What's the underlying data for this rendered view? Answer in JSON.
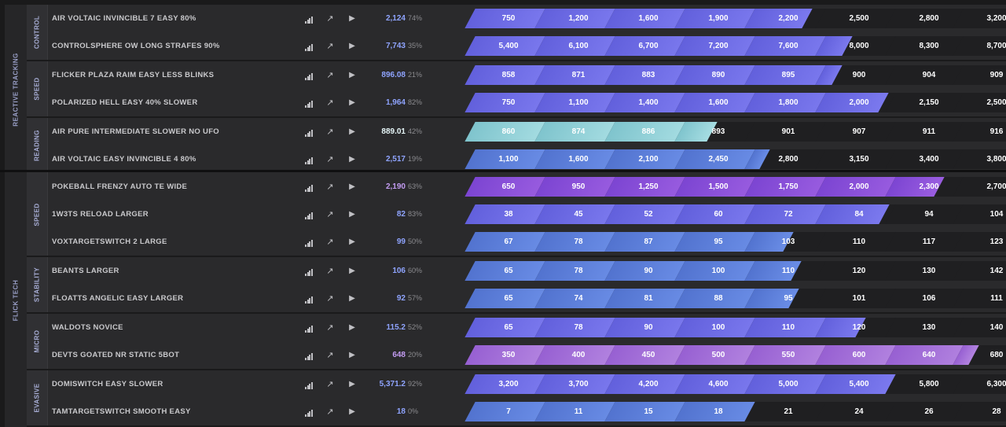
{
  "colors": {
    "blue": "#5b7fd9",
    "violet": "#6d6ce6",
    "purple": "#8a50d8",
    "lavender": "#a371d8",
    "cyan": "#8ecfd6"
  },
  "icons": [
    "bar-chart-icon",
    "trend-icon",
    "play-icon"
  ],
  "sections": [
    {
      "label": "REACTIVE TRACKING",
      "groups": [
        {
          "label": "CONTROL",
          "rows": [
            {
              "scenario": "AIR VOLTAIC INVINCIBLE 7 EASY 80%",
              "score": "2,124",
              "pct": "74%",
              "color": "violet",
              "progress": 4.74,
              "ranks": [
                "750",
                "1,200",
                "1,600",
                "1,900",
                "2,200",
                "2,500",
                "2,800",
                "3,200"
              ]
            },
            {
              "scenario": "CONTROLSPHERE OW LONG STRAFES 90%",
              "score": "7,743",
              "pct": "35%",
              "color": "violet",
              "progress": 5.35,
              "ranks": [
                "5,400",
                "6,100",
                "6,700",
                "7,200",
                "7,600",
                "8,000",
                "8,300",
                "8,700"
              ]
            }
          ]
        },
        {
          "label": "SPEED",
          "rows": [
            {
              "scenario": "FLICKER PLAZA RAIM EASY LESS BLINKS",
              "score": "896.08",
              "pct": "21%",
              "color": "violet",
              "progress": 5.21,
              "ranks": [
                "858",
                "871",
                "883",
                "890",
                "895",
                "900",
                "904",
                "909"
              ]
            },
            {
              "scenario": "POLARIZED HELL EASY 40% SLOWER",
              "score": "1,964",
              "pct": "82%",
              "color": "violet",
              "progress": 5.82,
              "ranks": [
                "750",
                "1,100",
                "1,400",
                "1,600",
                "1,800",
                "2,000",
                "2,150",
                "2,500"
              ]
            }
          ]
        },
        {
          "label": "READING",
          "rows": [
            {
              "scenario": "AIR PURE INTERMEDIATE SLOWER NO UFO",
              "score": "889.01",
              "pct": "42%",
              "color": "cyan",
              "progress": 3.42,
              "ranks": [
                "860",
                "874",
                "886",
                "893",
                "901",
                "907",
                "911",
                "916"
              ]
            },
            {
              "scenario": "AIR VOLTAIC EASY INVINCIBLE 4 80%",
              "score": "2,517",
              "pct": "19%",
              "color": "blue",
              "progress": 4.19,
              "ranks": [
                "1,100",
                "1,600",
                "2,100",
                "2,450",
                "2,800",
                "3,150",
                "3,400",
                "3,800"
              ]
            }
          ]
        }
      ]
    },
    {
      "label": "FLICK TECH",
      "groups": [
        {
          "label": "SPEED",
          "rows": [
            {
              "scenario": "POKEBALL FRENZY AUTO TE WIDE",
              "score": "2,190",
              "pct": "63%",
              "color": "purple",
              "progress": 6.63,
              "ranks": [
                "650",
                "950",
                "1,250",
                "1,500",
                "1,750",
                "2,000",
                "2,300",
                "2,700"
              ]
            },
            {
              "scenario": "1W3TS RELOAD LARGER",
              "score": "82",
              "pct": "83%",
              "color": "violet",
              "progress": 5.83,
              "ranks": [
                "38",
                "45",
                "52",
                "60",
                "72",
                "84",
                "94",
                "104"
              ]
            },
            {
              "scenario": "VOXTARGETSWITCH 2 LARGE",
              "score": "99",
              "pct": "50%",
              "color": "blue",
              "progress": 4.5,
              "ranks": [
                "67",
                "78",
                "87",
                "95",
                "103",
                "110",
                "117",
                "123"
              ]
            }
          ]
        },
        {
          "label": "STABILITY",
          "rows": [
            {
              "scenario": "BEANTS LARGER",
              "score": "106",
              "pct": "60%",
              "color": "blue",
              "progress": 4.6,
              "ranks": [
                "65",
                "78",
                "90",
                "100",
                "110",
                "120",
                "130",
                "142"
              ]
            },
            {
              "scenario": "FLOATTS ANGELIC EASY LARGER",
              "score": "92",
              "pct": "57%",
              "color": "blue",
              "progress": 4.57,
              "ranks": [
                "65",
                "74",
                "81",
                "88",
                "95",
                "101",
                "106",
                "111"
              ]
            }
          ]
        },
        {
          "label": "MICRO",
          "rows": [
            {
              "scenario": "WALDOTS NOVICE",
              "score": "115.2",
              "pct": "52%",
              "color": "violet",
              "progress": 5.52,
              "ranks": [
                "65",
                "78",
                "90",
                "100",
                "110",
                "120",
                "130",
                "140"
              ]
            },
            {
              "scenario": "DEVTS GOATED NR STATIC 5BOT",
              "score": "648",
              "pct": "20%",
              "color": "lavender",
              "progress": 7.2,
              "ranks": [
                "350",
                "400",
                "450",
                "500",
                "550",
                "600",
                "640",
                "680"
              ]
            }
          ]
        },
        {
          "label": "EVASIVE",
          "rows": [
            {
              "scenario": "DOMISWITCH EASY SLOWER",
              "score": "5,371.2",
              "pct": "92%",
              "color": "violet",
              "progress": 5.92,
              "ranks": [
                "3,200",
                "3,700",
                "4,200",
                "4,600",
                "5,000",
                "5,400",
                "5,800",
                "6,300"
              ]
            },
            {
              "scenario": "TAMTARGETSWITCH SMOOTH EASY",
              "score": "18",
              "pct": "0%",
              "color": "blue",
              "progress": 4.0,
              "ranks": [
                "7",
                "11",
                "15",
                "18",
                "21",
                "24",
                "26",
                "28"
              ]
            }
          ]
        }
      ]
    }
  ]
}
